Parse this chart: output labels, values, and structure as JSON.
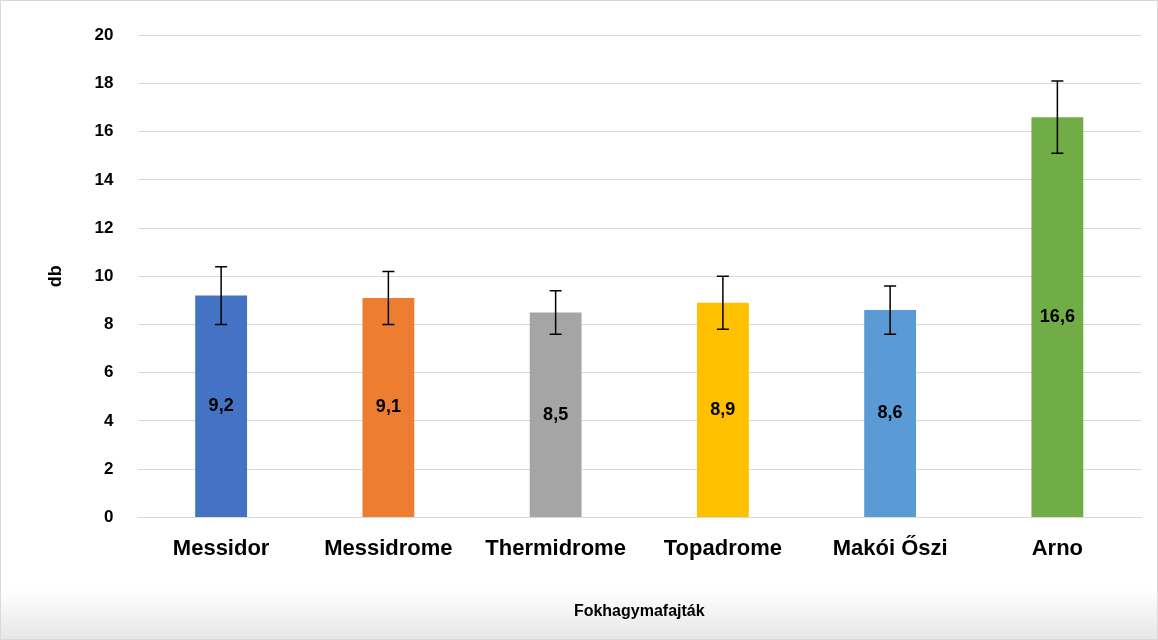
{
  "chart_data": {
    "type": "bar",
    "xlabel": "Fokhagymafajták",
    "ylabel": "db",
    "categories": [
      "Messidor",
      "Messidrome",
      "Thermidrome",
      "Topadrome",
      "Makói Őszi",
      "Arno"
    ],
    "values": [
      9.2,
      9.1,
      8.5,
      8.9,
      8.6,
      16.6
    ],
    "colors": [
      "#4472c4",
      "#ed7d31",
      "#a5a5a5",
      "#ffc000",
      "#5b9bd5",
      "#70ad47"
    ],
    "errors": [
      1.2,
      1.1,
      0.9,
      1.1,
      1.0,
      1.5
    ],
    "ylim": [
      0,
      20
    ],
    "yticks": [
      0,
      2,
      4,
      6,
      8,
      10,
      12,
      14,
      16,
      18,
      20
    ],
    "value_labels": [
      "9,2",
      "9,1",
      "8,5",
      "8,9",
      "8,6",
      "16,6"
    ],
    "grid": "y",
    "legend": false
  }
}
